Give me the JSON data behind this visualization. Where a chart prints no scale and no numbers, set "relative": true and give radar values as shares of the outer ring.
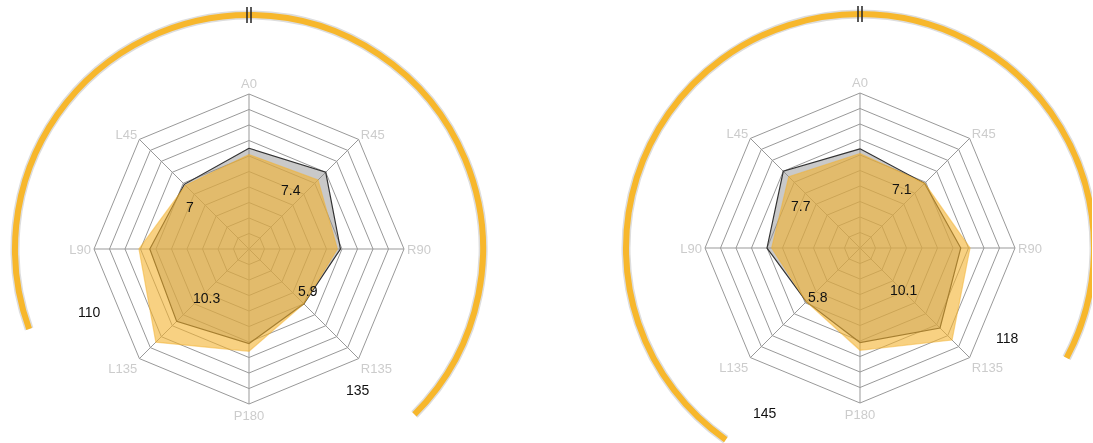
{
  "chart_data": [
    {
      "type": "radar",
      "relative": true,
      "categories": [
        "A0",
        "R45",
        "R90",
        "R135",
        "P180",
        "L135",
        "L90",
        "L45"
      ],
      "series": [
        {
          "color": "#888888",
          "values": [
            0.65,
            0.7,
            0.59,
            0.5,
            0.61,
            0.66,
            0.64,
            0.59
          ]
        },
        {
          "color": "#f4b22e",
          "values": [
            0.61,
            0.63,
            0.57,
            0.5,
            0.66,
            0.85,
            0.71,
            0.58
          ]
        }
      ],
      "annotations": [
        {
          "text": "7",
          "x": "L45"
        },
        {
          "text": "7.4",
          "x": "R45"
        },
        {
          "text": "5.9",
          "x": "R135"
        },
        {
          "text": "10.3",
          "x": "L135"
        },
        "110",
        "135"
      ]
    },
    {
      "type": "radar",
      "relative": true,
      "categories": [
        "A0",
        "R45",
        "R90",
        "R135",
        "P180",
        "L135",
        "L90",
        "L45"
      ],
      "series": [
        {
          "color": "#888888",
          "values": [
            0.64,
            0.59,
            0.65,
            0.73,
            0.61,
            0.49,
            0.6,
            0.7
          ]
        },
        {
          "color": "#f4b22e",
          "values": [
            0.61,
            0.59,
            0.71,
            0.84,
            0.66,
            0.49,
            0.57,
            0.65
          ]
        }
      ],
      "annotations": [
        {
          "text": "7.7",
          "x": "L45"
        },
        {
          "text": "7.1",
          "x": "R45"
        },
        {
          "text": "5.8",
          "x": "L135"
        },
        {
          "text": "10.1",
          "x": "R135"
        },
        "145",
        "118"
      ]
    }
  ]
}
